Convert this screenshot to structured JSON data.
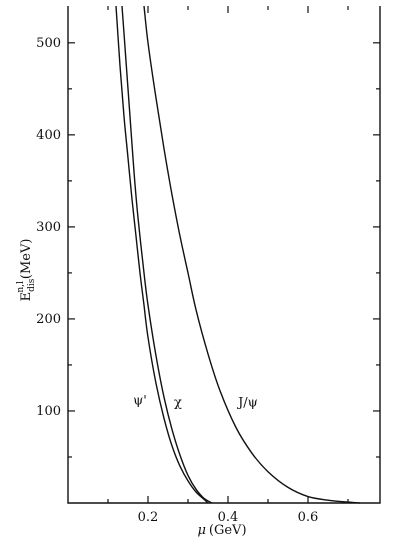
{
  "chart_data": {
    "type": "line",
    "xlabel": "μ (GeV)",
    "ylabel": "E_dis^{n,l} (MeV)",
    "ylabel_parts": {
      "base": "E",
      "sub": "dis",
      "sup": "n,l",
      "unit": "(MeV)"
    },
    "xlabel_parts": {
      "symbol": "μ",
      "unit": "(GeV)"
    },
    "xlim": [
      0.0,
      0.78
    ],
    "ylim": [
      0,
      540
    ],
    "x_ticks": [
      0.2,
      0.4,
      0.6
    ],
    "x_tick_labels": [
      "0.2",
      "0.4",
      "0.6"
    ],
    "x_minor_ticks": [
      0.1,
      0.3,
      0.5,
      0.7
    ],
    "y_ticks": [
      100,
      200,
      300,
      400,
      500
    ],
    "y_tick_labels": [
      "100",
      "200",
      "300",
      "400",
      "500"
    ],
    "y_minor_ticks": [
      50,
      150,
      250,
      350,
      450
    ],
    "grid": false,
    "series": [
      {
        "name": "ψ'",
        "label_pos": [
          0.18,
          107
        ],
        "x": [
          0.12,
          0.13,
          0.14,
          0.15,
          0.16,
          0.17,
          0.18,
          0.19,
          0.2,
          0.22,
          0.24,
          0.26,
          0.28,
          0.3,
          0.32,
          0.34,
          0.35
        ],
        "y": [
          540,
          475,
          420,
          375,
          330,
          290,
          250,
          215,
          180,
          130,
          92,
          62,
          40,
          24,
          12,
          4,
          0
        ]
      },
      {
        "name": "χ",
        "label_pos": [
          0.275,
          105
        ],
        "x": [
          0.135,
          0.145,
          0.155,
          0.165,
          0.175,
          0.19,
          0.2,
          0.22,
          0.24,
          0.26,
          0.28,
          0.3,
          0.32,
          0.34,
          0.36
        ],
        "y": [
          540,
          480,
          420,
          360,
          310,
          250,
          215,
          160,
          115,
          80,
          52,
          30,
          15,
          5,
          0
        ]
      },
      {
        "name": "J/ψ",
        "label_pos": [
          0.45,
          105
        ],
        "x": [
          0.19,
          0.2,
          0.22,
          0.24,
          0.26,
          0.28,
          0.3,
          0.32,
          0.35,
          0.38,
          0.42,
          0.46,
          0.5,
          0.55,
          0.6,
          0.65,
          0.7,
          0.73
        ],
        "y": [
          540,
          500,
          440,
          385,
          335,
          290,
          250,
          210,
          162,
          122,
          82,
          54,
          34,
          17,
          7,
          3,
          1,
          0
        ]
      }
    ]
  }
}
